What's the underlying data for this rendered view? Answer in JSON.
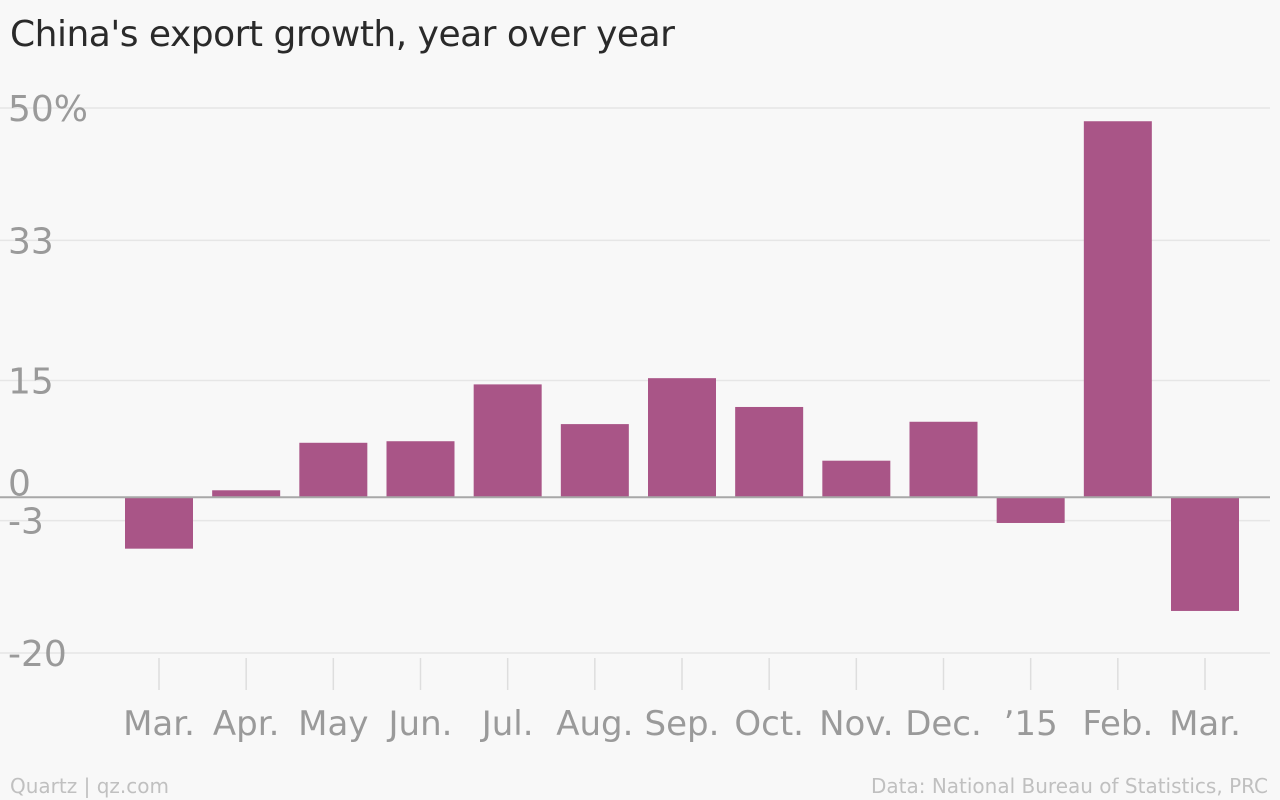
{
  "chart_data": {
    "type": "bar",
    "title": "China's export growth, year over year",
    "categories": [
      "Mar.",
      "Apr.",
      "May",
      "Jun.",
      "Jul.",
      "Aug.",
      "Sep.",
      "Oct.",
      "Nov.",
      "Dec.",
      "’15",
      "Feb.",
      "Mar."
    ],
    "values": [
      -6.6,
      0.9,
      7.0,
      7.2,
      14.5,
      9.4,
      15.3,
      11.6,
      4.7,
      9.7,
      -3.3,
      48.3,
      -14.6
    ],
    "yticks": [
      50,
      33,
      15,
      0,
      -3,
      -20
    ],
    "ytick_labels": [
      "50%",
      "33",
      "15",
      "0",
      "-3",
      "-20"
    ],
    "ylim": [
      -20,
      50
    ],
    "xlabel": "",
    "ylabel": "",
    "grid": true,
    "legend": "none",
    "colors": {
      "bar": "#a95587",
      "grid": "#e6e6e6",
      "zero_line": "#a8a8a8",
      "tick_label": "#9a9a9a",
      "x_tick_mark": "#dedede"
    }
  },
  "footer": {
    "left": "Quartz | qz.com",
    "right": "Data: National Bureau of Statistics, PRC"
  }
}
